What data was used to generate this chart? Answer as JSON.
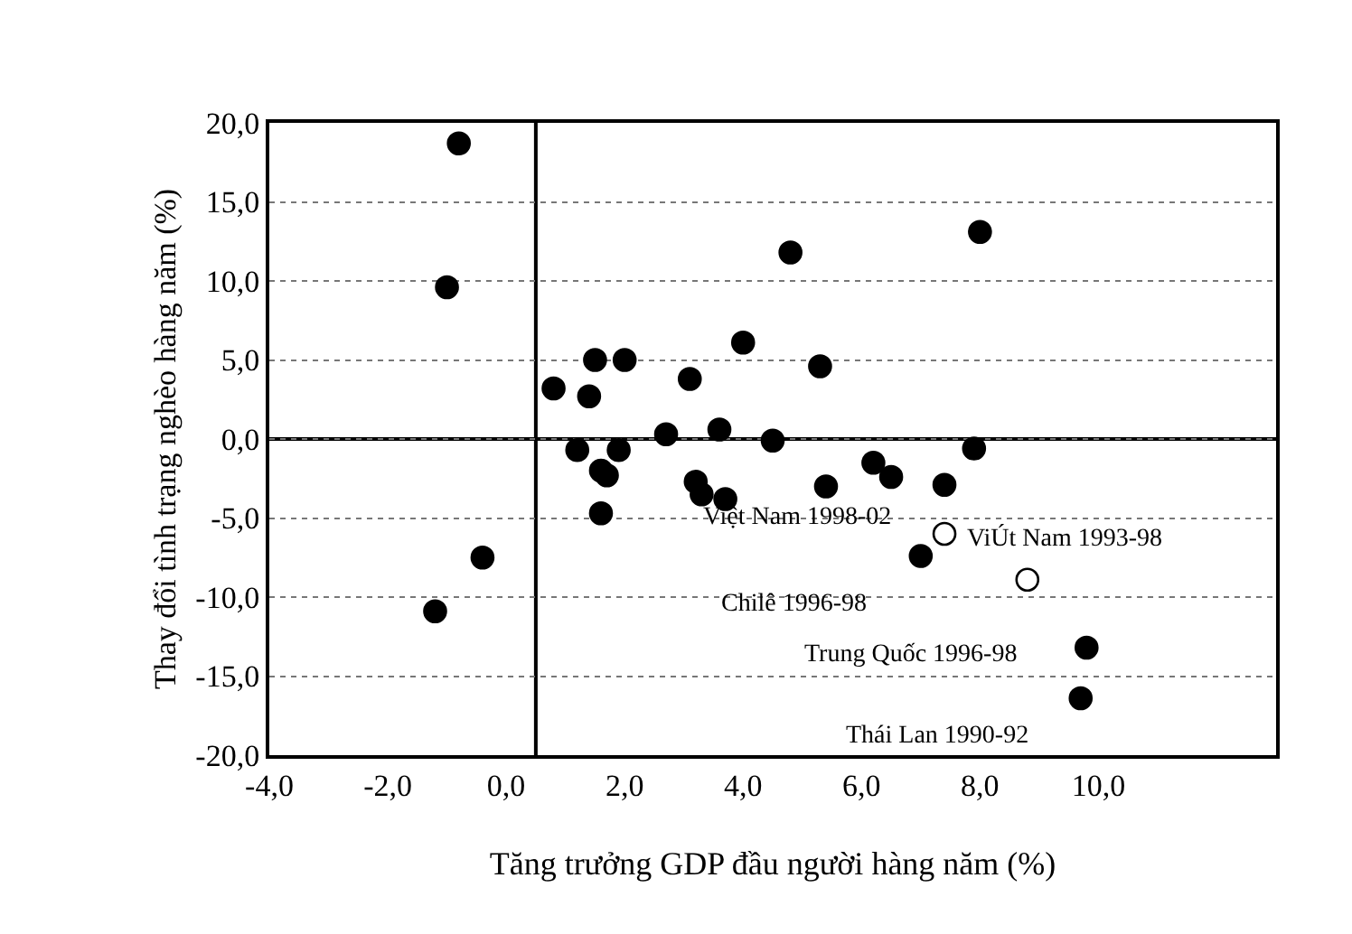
{
  "chart_data": {
    "type": "scatter",
    "xlabel": "Tăng trưởng GDP đầu người hàng năm (%)",
    "ylabel": "Thay đổi tình trạng nghèo hàng năm (%)",
    "xlim": [
      -4,
      13
    ],
    "ylim": [
      -20,
      20
    ],
    "xticks": [
      {
        "value": -4,
        "label": "-4,0"
      },
      {
        "value": -2,
        "label": "-2,0"
      },
      {
        "value": 0,
        "label": "0,0"
      },
      {
        "value": 2,
        "label": "2,0"
      },
      {
        "value": 4,
        "label": "4,0"
      },
      {
        "value": 6,
        "label": "6,0"
      },
      {
        "value": 8,
        "label": "8,0"
      },
      {
        "value": 10,
        "label": "10,0"
      }
    ],
    "yticks": [
      {
        "value": -20,
        "label": "-20,0"
      },
      {
        "value": -15,
        "label": "-15,0"
      },
      {
        "value": -10,
        "label": "-10,0"
      },
      {
        "value": -5,
        "label": "-5,0"
      },
      {
        "value": 0,
        "label": "0,0"
      },
      {
        "value": 5,
        "label": "5,0"
      },
      {
        "value": 10,
        "label": "10,0"
      },
      {
        "value": 15,
        "label": "15,0"
      },
      {
        "value": 20,
        "label": "20,0"
      }
    ],
    "grid": "y",
    "marker": "circle",
    "ref_lines": [
      {
        "axis": "x",
        "value": 0.5,
        "color": "#000000",
        "line_style": "solid"
      },
      {
        "axis": "y",
        "value": 0,
        "color": "#000000",
        "line_style": "solid"
      }
    ],
    "series": [
      {
        "color": "#000000",
        "x": [
          -0.8,
          -1.0,
          -0.4,
          -1.2,
          0.8,
          1.4,
          1.5,
          2.0,
          3.1,
          2.7,
          3.6,
          1.2,
          1.9,
          4.8,
          8.0,
          4.0,
          5.3,
          4.5,
          7.9,
          6.2,
          6.5,
          5.4,
          7.4,
          3.2,
          3.3,
          3.7,
          1.6,
          1.7,
          1.6,
          7.0,
          9.8,
          9.7
        ],
        "values": [
          18.7,
          9.6,
          -7.5,
          -10.9,
          3.2,
          2.7,
          5.0,
          5.0,
          3.8,
          0.3,
          0.6,
          -0.7,
          -0.7,
          11.8,
          13.1,
          6.1,
          4.6,
          -0.1,
          -0.6,
          -1.5,
          -2.4,
          -3.0,
          -2.9,
          -2.7,
          -3.5,
          -3.8,
          -2.0,
          -2.3,
          -4.7,
          -7.4,
          -13.2,
          -16.4
        ]
      },
      {
        "color": "#ffffff",
        "x": [
          7.4,
          8.8
        ],
        "values": [
          -6.0,
          -8.9
        ]
      }
    ],
    "annotations": [
      {
        "text": "Việt Nam 1998-02",
        "x": 7.4,
        "y": -6.0
      },
      {
        "text": "ViÚt Nam 1993-98",
        "x": 8.8,
        "y": -8.9
      },
      {
        "text": "Chilê 1996-98",
        "x": 7.0,
        "y": -7.4
      },
      {
        "text": "Trung Quốc 1996-98",
        "x": 9.8,
        "y": -13.2
      },
      {
        "text": "Thái Lan 1990-92",
        "x": 9.7,
        "y": -16.4
      }
    ]
  }
}
